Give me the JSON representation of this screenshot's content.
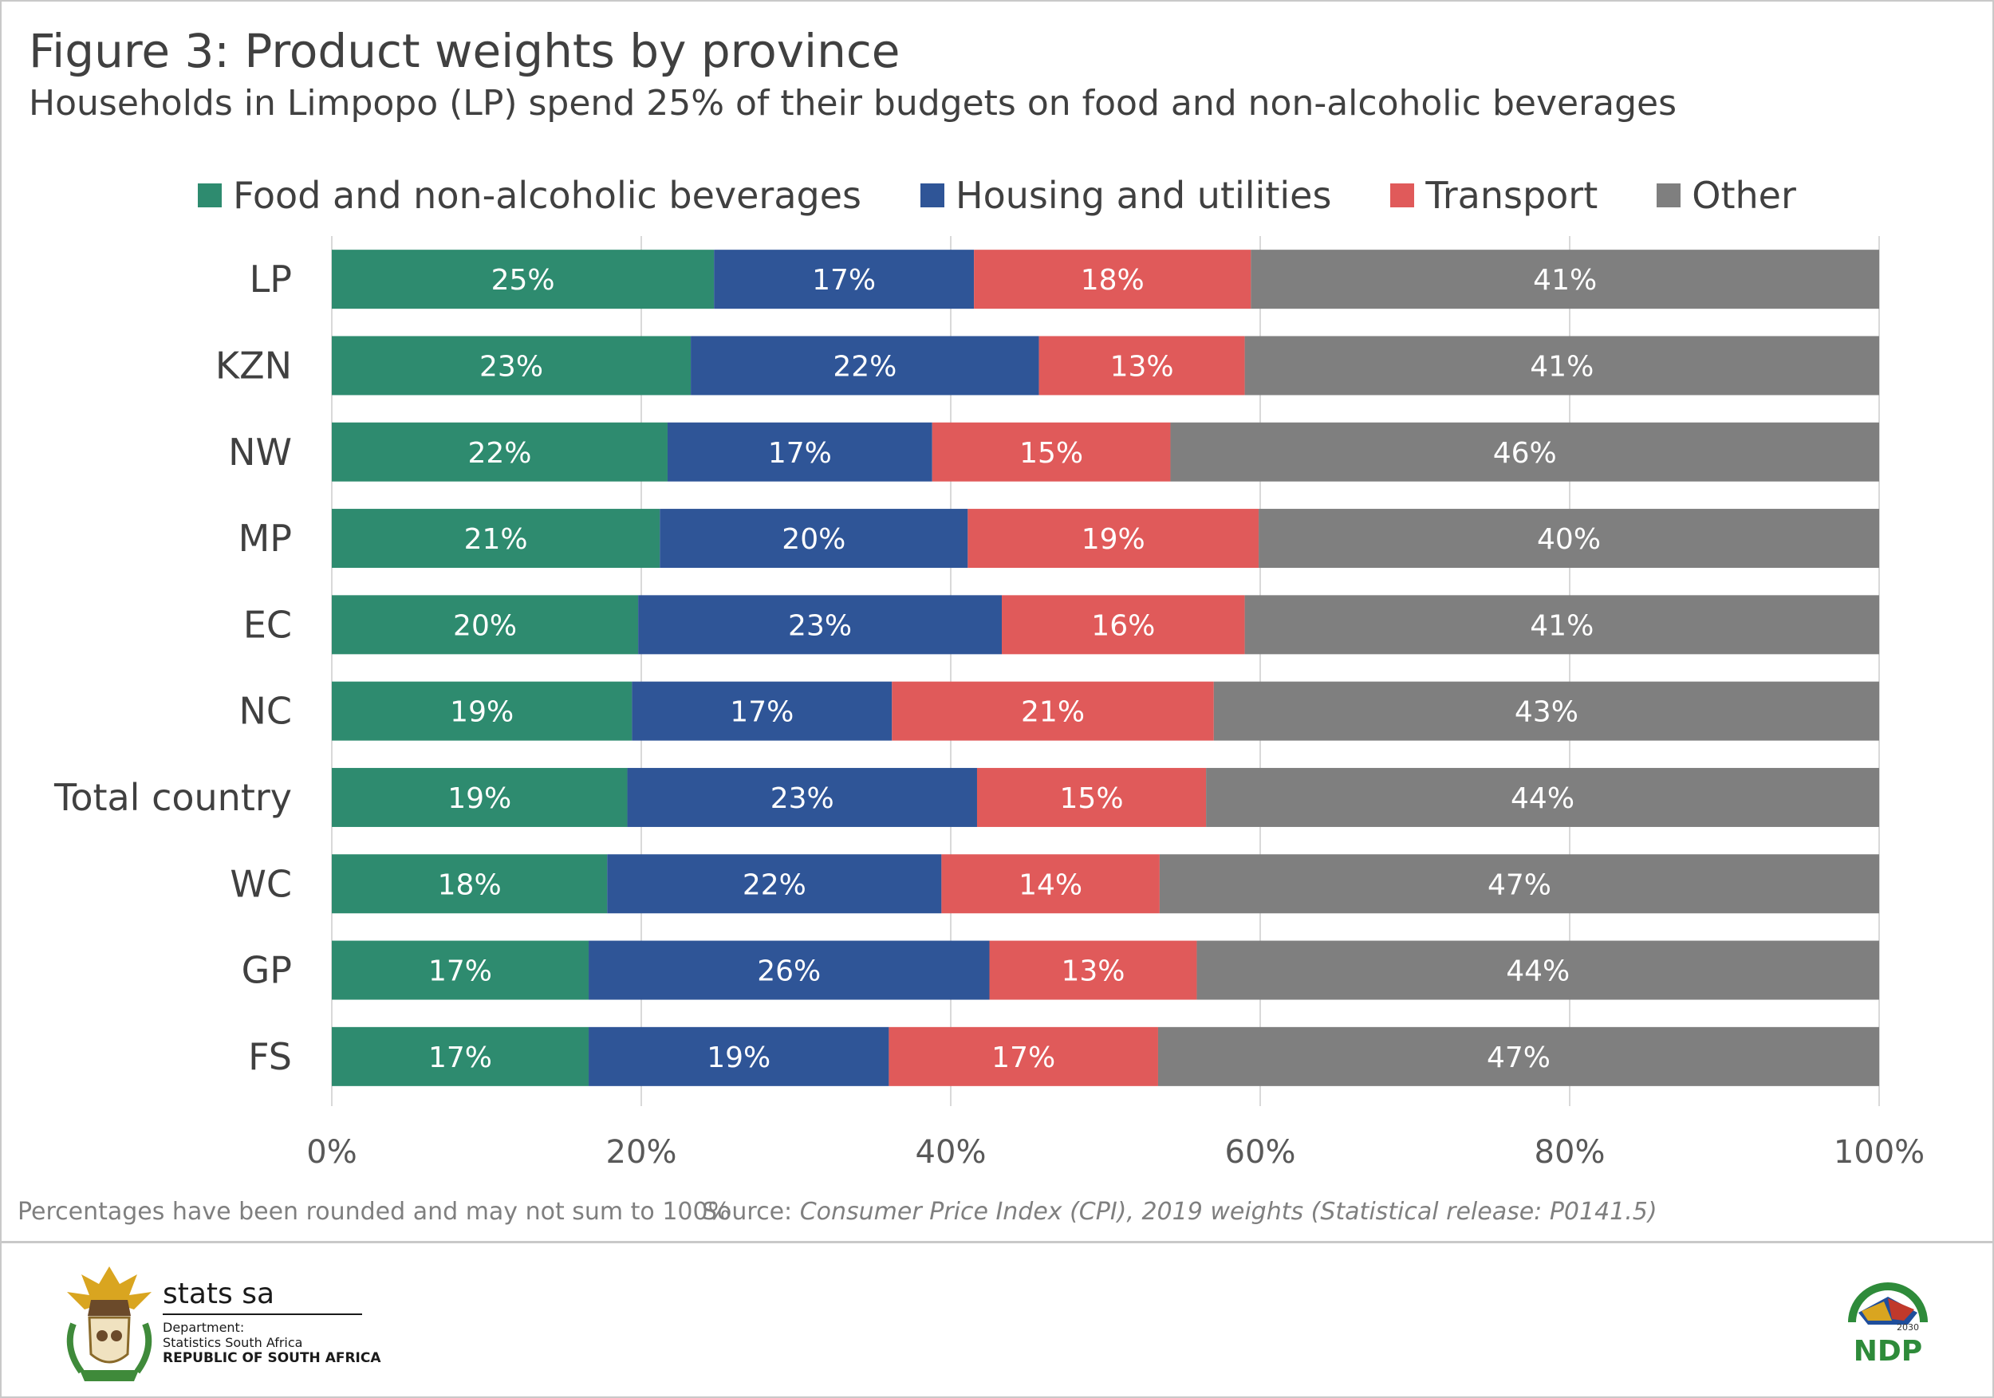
{
  "title": "Figure 3: Product weights by province",
  "subtitle": "Households in Limpopo (LP) spend 25% of their budgets on food and non-alcoholic beverages",
  "footnote": "Percentages have been rounded and may not sum to 100%",
  "source": {
    "prefix": "Source: ",
    "title": "Consumer Price Index (CPI), 2019 weights (Statistical release: P0141.5)"
  },
  "branding": {
    "org_name": "stats sa",
    "dept_line1": "Department:",
    "dept_line2": "Statistics South Africa",
    "country": "REPUBLIC OF SOUTH AFRICA",
    "ndp_text": "NDP",
    "ndp_year": "2030"
  },
  "colors": {
    "food": "#2e8b6f",
    "housing": "#2f5597",
    "transport": "#e05a5a",
    "other": "#7f7f7f",
    "gridline": "#d9d9d9",
    "text": "#404040"
  },
  "chart_data": {
    "type": "bar",
    "orientation": "horizontal",
    "stacked": true,
    "percent_stacked": true,
    "legend_position": "top",
    "grid": true,
    "xlim": [
      0,
      100
    ],
    "x_ticks": [
      "0%",
      "20%",
      "40%",
      "60%",
      "80%",
      "100%"
    ],
    "categories": [
      "LP",
      "KZN",
      "NW",
      "MP",
      "EC",
      "NC",
      "Total country",
      "WC",
      "GP",
      "FS"
    ],
    "series": [
      {
        "name": "Food and non-alcoholic beverages",
        "color": "#2e8b6f",
        "values": [
          24.7,
          23.2,
          21.7,
          21.2,
          19.8,
          19.4,
          19.1,
          17.8,
          16.6,
          16.6
        ]
      },
      {
        "name": "Housing and utilities",
        "color": "#2f5597",
        "values": [
          16.8,
          22.5,
          17.1,
          19.9,
          23.5,
          16.8,
          22.6,
          21.6,
          25.9,
          19.4
        ]
      },
      {
        "name": "Transport",
        "color": "#e05a5a",
        "values": [
          17.9,
          13.3,
          15.4,
          18.8,
          15.7,
          20.8,
          14.8,
          14.1,
          13.4,
          17.4
        ]
      },
      {
        "name": "Other",
        "color": "#7f7f7f",
        "values": [
          40.6,
          41.0,
          45.8,
          40.1,
          41.0,
          43.0,
          43.5,
          46.5,
          44.1,
          46.6
        ]
      }
    ],
    "data_labels": [
      [
        "25%",
        "23%",
        "22%",
        "21%",
        "20%",
        "19%",
        "19%",
        "18%",
        "17%",
        "17%"
      ],
      [
        "17%",
        "22%",
        "17%",
        "20%",
        "23%",
        "17%",
        "23%",
        "22%",
        "26%",
        "19%"
      ],
      [
        "18%",
        "13%",
        "15%",
        "19%",
        "16%",
        "21%",
        "15%",
        "14%",
        "13%",
        "17%"
      ],
      [
        "41%",
        "41%",
        "46%",
        "40%",
        "41%",
        "43%",
        "44%",
        "47%",
        "44%",
        "47%"
      ]
    ]
  }
}
